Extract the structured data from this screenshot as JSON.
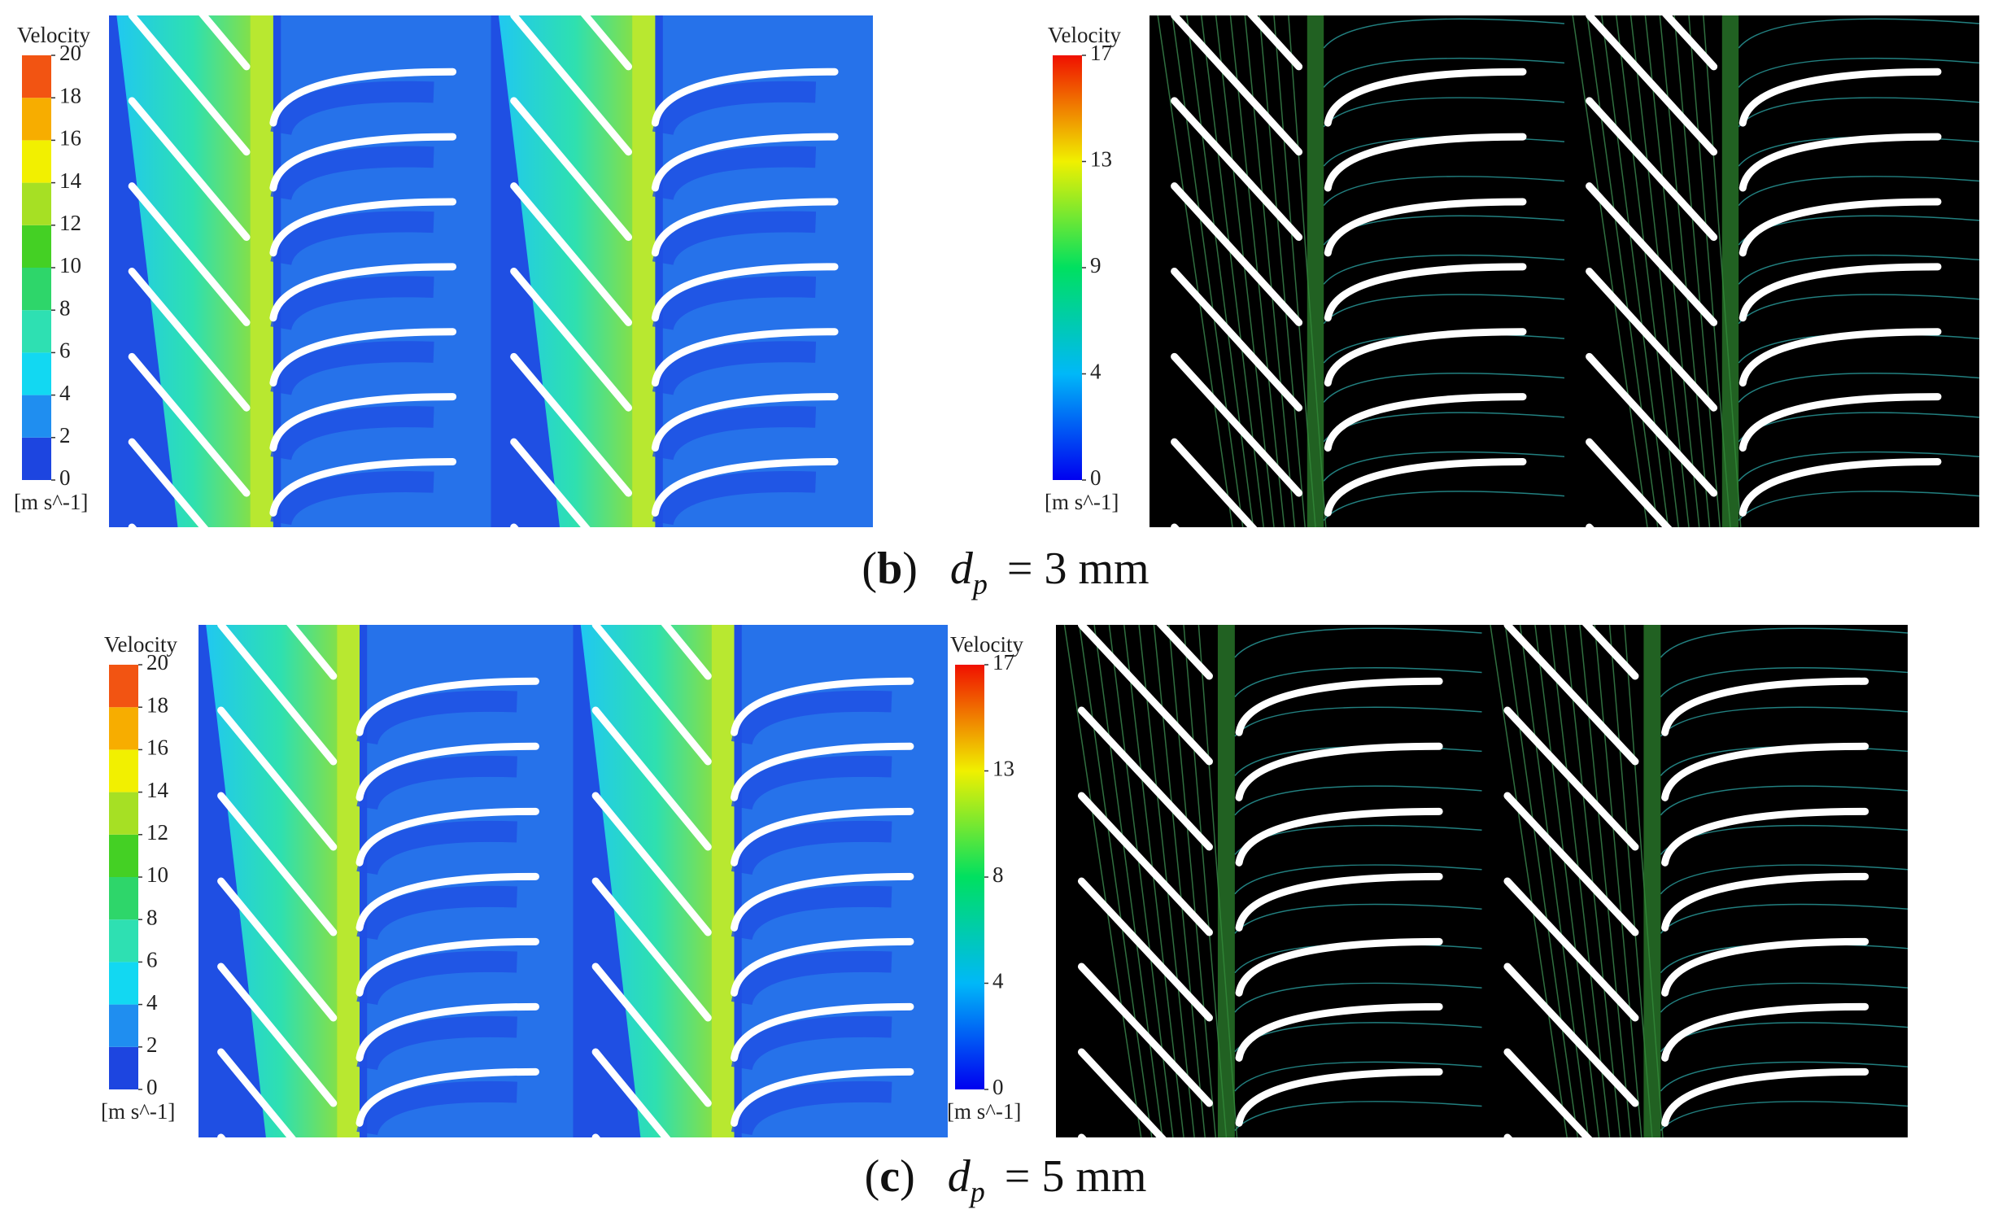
{
  "panels": [
    {
      "caption": {
        "open": "(",
        "label": "b",
        "close": ")",
        "symbol": "d",
        "subscript": "p",
        "text": "= 3 mm"
      },
      "contour": {
        "legend": {
          "title": "Velocity",
          "unit": "[m s^-1]",
          "range": [
            0,
            20
          ],
          "ticks": [
            0,
            2,
            4,
            6,
            8,
            10,
            12,
            14,
            16,
            18,
            20
          ],
          "band_colors": [
            "#1d45e0",
            "#1f8ef0",
            "#12d8f2",
            "#2ee0b2",
            "#2ed66a",
            "#44d024",
            "#a6e024",
            "#f2f000",
            "#f7ad00",
            "#f25412"
          ]
        }
      },
      "streamline": {
        "legend": {
          "title": "Velocity",
          "unit": "[m s^-1]",
          "range": [
            0,
            17
          ],
          "ticks": [
            0,
            {
              "value": 4.25,
              "label": "4"
            },
            {
              "value": 8.5,
              "label": "9"
            },
            {
              "value": 12.75,
              "label": "13"
            },
            17
          ],
          "gradient": [
            "#0000f0",
            "#00b8f8",
            "#00e060",
            "#f0f000",
            "#f01000"
          ]
        }
      }
    },
    {
      "caption": {
        "open": "(",
        "label": "c",
        "close": ")",
        "symbol": "d",
        "subscript": "p",
        "text": "= 5 mm"
      },
      "contour": {
        "legend": {
          "title": "Velocity",
          "unit": "[m s^-1]",
          "range": [
            0,
            20
          ],
          "ticks": [
            0,
            2,
            4,
            6,
            8,
            10,
            12,
            14,
            16,
            18,
            20
          ],
          "band_colors": [
            "#1d45e0",
            "#1f8ef0",
            "#12d8f2",
            "#2ee0b2",
            "#2ed66a",
            "#44d024",
            "#a6e024",
            "#f2f000",
            "#f7ad00",
            "#f25412"
          ]
        }
      },
      "streamline": {
        "legend": {
          "title": "Velocity",
          "unit": "[m s^-1]",
          "range": [
            0,
            17
          ],
          "ticks": [
            0,
            {
              "value": 4.25,
              "label": "4"
            },
            {
              "value": 8.5,
              "label": "8"
            },
            {
              "value": 12.75,
              "label": "13"
            },
            17
          ],
          "gradient": [
            "#0000f0",
            "#00b8f8",
            "#00e060",
            "#f0f000",
            "#f01000"
          ]
        }
      }
    }
  ]
}
